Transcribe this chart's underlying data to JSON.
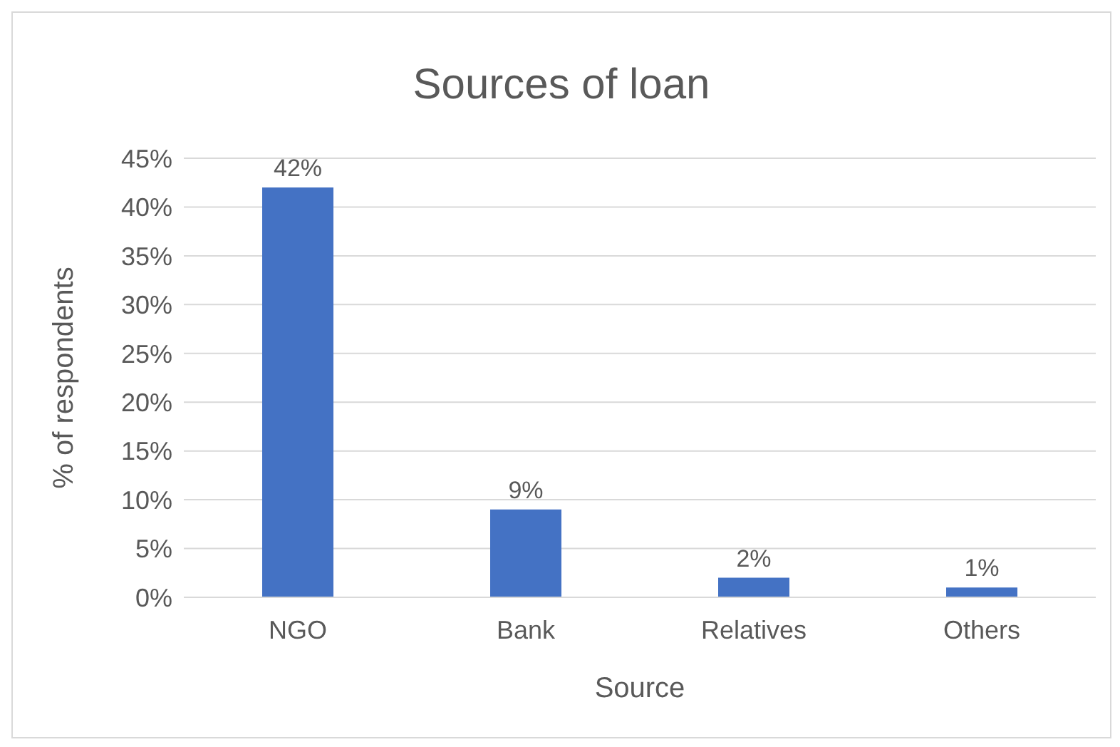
{
  "chart_data": {
    "type": "bar",
    "title": "Sources of loan",
    "xlabel": "Source",
    "ylabel": "% of respondents",
    "categories": [
      "NGO",
      "Bank",
      "Relatives",
      "Others"
    ],
    "values": [
      42,
      9,
      2,
      1
    ],
    "value_labels": [
      "42%",
      "9%",
      "2%",
      "1%"
    ],
    "color": "#4472c4",
    "ylim": [
      0,
      45
    ],
    "yticks": [
      {
        "value": 0,
        "label": "0%"
      },
      {
        "value": 5,
        "label": "5%"
      },
      {
        "value": 10,
        "label": "10%"
      },
      {
        "value": 15,
        "label": "15%"
      },
      {
        "value": 20,
        "label": "20%"
      },
      {
        "value": 25,
        "label": "25%"
      },
      {
        "value": 30,
        "label": "30%"
      },
      {
        "value": 35,
        "label": "35%"
      },
      {
        "value": 40,
        "label": "40%"
      },
      {
        "value": 45,
        "label": "45%"
      }
    ],
    "grid": "y"
  }
}
